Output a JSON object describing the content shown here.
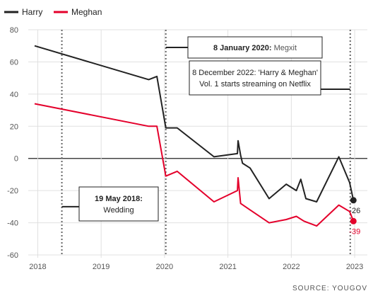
{
  "chart_data": {
    "type": "line",
    "title": "",
    "xlabel": "",
    "ylabel": "",
    "ylim": [
      -60,
      80
    ],
    "y_ticks": [
      80,
      60,
      40,
      20,
      0,
      -20,
      -40,
      -60
    ],
    "y_tick_labels": [
      "80",
      "60",
      "40",
      "20",
      "0",
      "-20",
      "-40",
      "-60"
    ],
    "xlim": [
      2017.85,
      2023.2
    ],
    "x_ticks": [
      2018,
      2019,
      2020,
      2021,
      2022,
      2023
    ],
    "x_tick_labels": [
      "2018",
      "2019",
      "2020",
      "2021",
      "2022",
      "2023"
    ],
    "grid": true,
    "legend_position": "top-left",
    "series": [
      {
        "name": "Harry",
        "color": "#222222",
        "points": [
          [
            2017.95,
            70
          ],
          [
            2019.75,
            49
          ],
          [
            2019.88,
            51
          ],
          [
            2020.02,
            19
          ],
          [
            2020.2,
            19
          ],
          [
            2020.78,
            1
          ],
          [
            2021.15,
            3
          ],
          [
            2021.16,
            11
          ],
          [
            2021.2,
            2
          ],
          [
            2021.23,
            -3
          ],
          [
            2021.35,
            -6
          ],
          [
            2021.65,
            -25
          ],
          [
            2021.92,
            -16
          ],
          [
            2022.08,
            -20
          ],
          [
            2022.15,
            -13
          ],
          [
            2022.23,
            -25
          ],
          [
            2022.4,
            -27
          ],
          [
            2022.75,
            1
          ],
          [
            2022.92,
            -15
          ],
          [
            2022.98,
            -26
          ]
        ],
        "end_label": "-26"
      },
      {
        "name": "Meghan",
        "color": "#e4002b",
        "points": [
          [
            2017.95,
            34
          ],
          [
            2019.75,
            20
          ],
          [
            2019.88,
            20
          ],
          [
            2020.02,
            -11
          ],
          [
            2020.2,
            -8
          ],
          [
            2020.78,
            -27
          ],
          [
            2021.15,
            -20
          ],
          [
            2021.16,
            -12
          ],
          [
            2021.2,
            -28
          ],
          [
            2021.35,
            -32
          ],
          [
            2021.65,
            -40
          ],
          [
            2021.92,
            -38
          ],
          [
            2022.08,
            -36
          ],
          [
            2022.2,
            -39
          ],
          [
            2022.4,
            -42
          ],
          [
            2022.75,
            -29
          ],
          [
            2022.92,
            -33
          ],
          [
            2022.98,
            -39
          ]
        ],
        "end_label": "-39"
      }
    ],
    "annotations": [
      {
        "date_label": "19 May 2018:",
        "text": "Wedding",
        "x": 2018.38,
        "y": -30,
        "box": "left"
      },
      {
        "date_label": "8 January 2020:",
        "text": "Megxit",
        "x": 2020.02,
        "y": 69,
        "box": "right"
      },
      {
        "date_label": "",
        "text_lines": [
          "8 December 2022: 'Harry & Meghan'",
          "Vol. 1 starts streaming on Netflix"
        ],
        "x": 2022.93,
        "y": 43,
        "box": "left"
      }
    ],
    "source": "SOURCE: YOUGOV"
  },
  "legend": {
    "harry_label": "Harry",
    "meghan_label": "Meghan"
  },
  "colors": {
    "harry": "#222222",
    "meghan": "#e4002b",
    "grid": "#e0e0e0",
    "zero_line": "#222222",
    "event_line": "#666666"
  }
}
